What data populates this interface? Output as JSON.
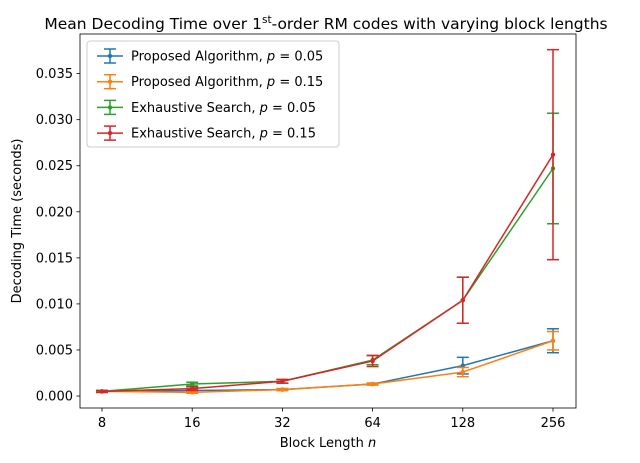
{
  "chart_data": {
    "type": "line",
    "title": {
      "prefix": "Mean Decoding Time over 1",
      "superscript": "st",
      "suffix": "-order RM codes with varying block lengths"
    },
    "xlabel": {
      "text": "Block Length ",
      "var": "n"
    },
    "ylabel": "Decoding Time (seconds)",
    "x_scale": "log2",
    "categories": [
      "8",
      "16",
      "32",
      "64",
      "128",
      "256"
    ],
    "x": [
      8,
      16,
      32,
      64,
      128,
      256
    ],
    "ylim": [
      -0.0013,
      0.0393
    ],
    "yticks": [
      0.0,
      0.005,
      0.01,
      0.015,
      0.02,
      0.025,
      0.03,
      0.035
    ],
    "ytick_labels": [
      "0.000",
      "0.005",
      "0.010",
      "0.015",
      "0.020",
      "0.025",
      "0.030",
      "0.035"
    ],
    "grid": false,
    "legend_position": "top-left",
    "series": [
      {
        "name": "Proposed Algorithm, ",
        "param": "p = 0.05",
        "color": "#1f77b4",
        "values": [
          0.0005,
          0.0006,
          0.0007,
          0.0013,
          0.0033,
          0.006
        ],
        "err": [
          0.0001,
          0.0001,
          0.0001,
          0.0001,
          0.0009,
          0.0013
        ]
      },
      {
        "name": "Proposed Algorithm, ",
        "param": "p = 0.15",
        "color": "#ff7f0e",
        "values": [
          0.0005,
          0.0004,
          0.0007,
          0.0013,
          0.0026,
          0.006
        ],
        "err": [
          0.0001,
          0.0001,
          0.0001,
          0.0001,
          0.0005,
          0.001
        ]
      },
      {
        "name": "Exhaustive Search, ",
        "param": "p = 0.05",
        "color": "#2ca02c",
        "values": [
          0.0005,
          0.0013,
          0.0016,
          0.0039,
          0.0104,
          0.0247
        ],
        "err": [
          0.0001,
          0.0002,
          0.0002,
          0.0005,
          0.0025,
          0.006
        ]
      },
      {
        "name": "Exhaustive Search, ",
        "param": "p = 0.15",
        "color": "#d62728",
        "values": [
          0.0005,
          0.0008,
          0.0016,
          0.0038,
          0.0104,
          0.0262
        ],
        "err": [
          0.0001,
          0.0002,
          0.0002,
          0.0006,
          0.0025,
          0.0114
        ]
      }
    ]
  }
}
